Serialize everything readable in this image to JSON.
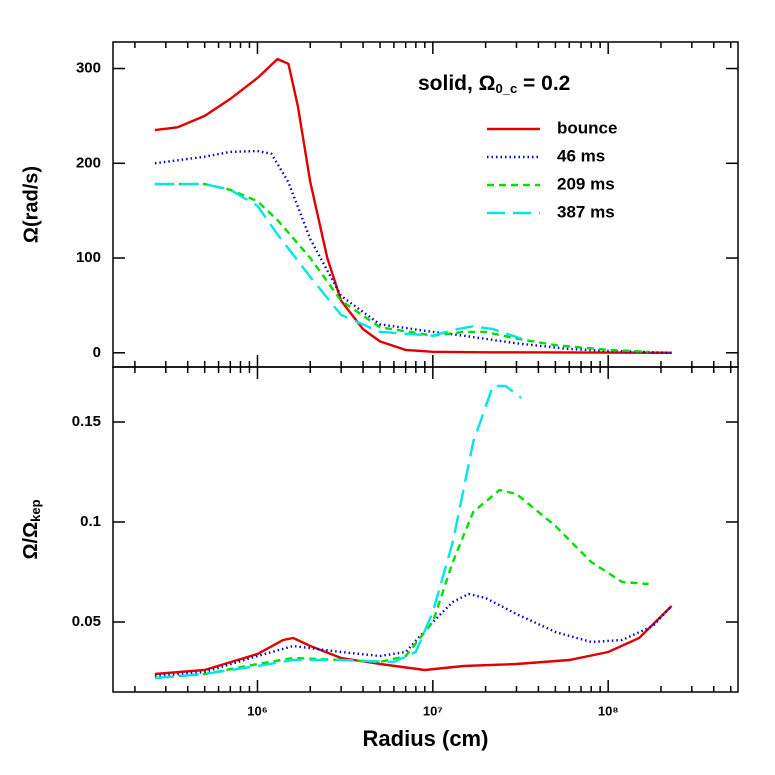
{
  "chart_data": [
    {
      "type": "line",
      "annotation": [
        "solid, Ω",
        "0_c",
        " = 0.2"
      ],
      "ylabel": "Ω(rad/s)",
      "ylim": [
        -15,
        328
      ],
      "yticks": [
        0,
        100,
        200,
        300
      ],
      "legend": "upper right",
      "series": [
        {
          "name": "bounce",
          "color": "#e00000",
          "dash": "solid",
          "x": [
            260000,
            350000,
            500000,
            700000,
            1000000,
            1300000,
            1500000,
            1700000,
            2000000,
            2500000,
            3000000,
            4000000,
            5000000,
            7000000,
            10000000,
            20000000,
            100000000,
            230000000
          ],
          "values": [
            235,
            238,
            250,
            268,
            290,
            310,
            305,
            260,
            180,
            100,
            55,
            25,
            12,
            3,
            1,
            0.5,
            0.2,
            0
          ]
        },
        {
          "name": "46 ms",
          "color": "#0000cc",
          "dash": "dotted",
          "x": [
            260000,
            500000,
            700000,
            1000000,
            1200000,
            1500000,
            2000000,
            3000000,
            5000000,
            10000000,
            15000000,
            30000000,
            60000000,
            100000000,
            230000000
          ],
          "values": [
            200,
            207,
            212,
            213,
            210,
            180,
            120,
            60,
            30,
            22,
            18,
            10,
            4,
            2,
            0
          ]
        },
        {
          "name": "209 ms",
          "color": "#00dd00",
          "dash": "dashed",
          "x": [
            260000,
            500000,
            700000,
            1000000,
            1300000,
            2000000,
            3000000,
            5000000,
            10000000,
            15000000,
            20000000,
            30000000,
            50000000,
            100000000,
            170000000
          ],
          "values": [
            178,
            178,
            172,
            160,
            140,
            100,
            55,
            27,
            18,
            22,
            22,
            15,
            8,
            3,
            1
          ]
        },
        {
          "name": "387 ms",
          "color": "#00e5e5",
          "dash": "longdash",
          "x": [
            260000,
            500000,
            700000,
            1000000,
            1300000,
            2000000,
            3000000,
            5000000,
            10000000,
            13000000,
            17000000,
            22000000,
            32000000
          ],
          "values": [
            178,
            178,
            172,
            155,
            125,
            80,
            40,
            22,
            18,
            24,
            28,
            25,
            15
          ]
        }
      ]
    },
    {
      "type": "line",
      "ylabel": [
        "Ω/Ω",
        "kep"
      ],
      "xlabel": "Radius (cm)",
      "xscale": "log",
      "xlim": [
        150000,
        550000000
      ],
      "xticks": [
        {
          "value": 1000000,
          "label": "10⁶"
        },
        {
          "value": 10000000,
          "label": "10⁷"
        },
        {
          "value": 100000000,
          "label": "10⁸"
        }
      ],
      "xminorticks": [
        200000,
        300000,
        400000,
        500000,
        600000,
        700000,
        800000,
        900000,
        2000000,
        3000000,
        4000000,
        5000000,
        6000000,
        7000000,
        8000000,
        9000000,
        20000000,
        30000000,
        40000000,
        50000000,
        60000000,
        70000000,
        80000000,
        90000000,
        200000000,
        300000000,
        400000000,
        500000000
      ],
      "ylim": [
        0.015,
        0.1775
      ],
      "yticks": [
        0.05,
        0.1,
        0.15
      ],
      "series": [
        {
          "color": "#e00000",
          "dash": "solid",
          "x": [
            260000,
            500000,
            1000000,
            1400000,
            1600000,
            2000000,
            3000000,
            5000000,
            9000000,
            15000000,
            30000000,
            60000000,
            100000000,
            150000000,
            230000000
          ],
          "values": [
            0.024,
            0.026,
            0.034,
            0.041,
            0.042,
            0.038,
            0.032,
            0.029,
            0.026,
            0.028,
            0.029,
            0.031,
            0.035,
            0.042,
            0.058
          ]
        },
        {
          "color": "#0000cc",
          "dash": "dotted",
          "x": [
            260000,
            500000,
            1000000,
            1600000,
            3000000,
            5000000,
            7000000,
            10000000,
            13000000,
            16000000,
            20000000,
            30000000,
            50000000,
            80000000,
            120000000,
            180000000,
            230000000
          ],
          "values": [
            0.023,
            0.025,
            0.033,
            0.038,
            0.035,
            0.033,
            0.035,
            0.05,
            0.06,
            0.064,
            0.062,
            0.054,
            0.045,
            0.04,
            0.041,
            0.048,
            0.058
          ]
        },
        {
          "color": "#00dd00",
          "dash": "dashed",
          "x": [
            260000,
            500000,
            1000000,
            1600000,
            3000000,
            5000000,
            7000000,
            10000000,
            13000000,
            17000000,
            24000000,
            30000000,
            50000000,
            80000000,
            120000000,
            170000000
          ],
          "values": [
            0.022,
            0.024,
            0.029,
            0.032,
            0.031,
            0.03,
            0.033,
            0.05,
            0.08,
            0.105,
            0.116,
            0.114,
            0.098,
            0.08,
            0.07,
            0.069
          ]
        },
        {
          "color": "#00e5e5",
          "dash": "longdash",
          "x": [
            260000,
            500000,
            1000000,
            1600000,
            3000000,
            6000000,
            8000000,
            10000000,
            13000000,
            17000000,
            22000000,
            26000000,
            32000000
          ],
          "values": [
            0.022,
            0.024,
            0.028,
            0.031,
            0.031,
            0.03,
            0.035,
            0.055,
            0.09,
            0.14,
            0.168,
            0.168,
            0.162
          ]
        }
      ]
    }
  ]
}
